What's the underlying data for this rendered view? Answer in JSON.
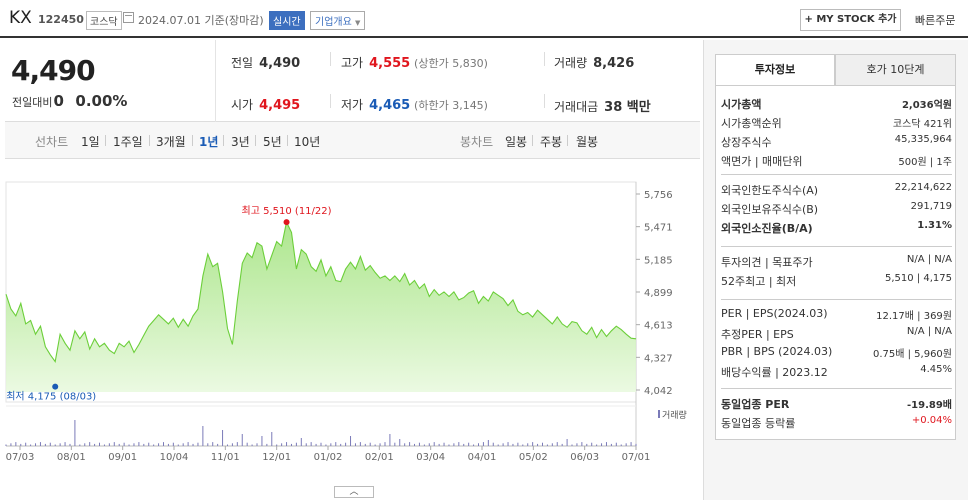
{
  "header": {
    "stock_name": "KX",
    "stock_code": "122450",
    "market": "코스닥",
    "date_text": "2024.07.01 기준(장마감)",
    "live_badge": "실시간",
    "company_info": "기업개요",
    "mystock_button": "+ MY STOCK 추가",
    "quick_order": "빠른주문"
  },
  "quote": {
    "price": "4,490",
    "change_label": "전일대비",
    "change_value": "0",
    "change_pct": "0.00%",
    "prev_label": "전일",
    "prev_value": "4,490",
    "high_label": "고가",
    "high_value": "4,555",
    "upper_limit": "(상한가 5,830)",
    "volume_label": "거래량",
    "volume_value": "8,426",
    "open_label": "시가",
    "open_value": "4,495",
    "low_label": "저가",
    "low_value": "4,465",
    "lower_limit": "(하한가 3,145)",
    "amount_label": "거래대금",
    "amount_value": "38 백만"
  },
  "period_tabs": {
    "line_label": "선차트",
    "line_items": [
      "1일",
      "1주일",
      "3개월",
      "1년",
      "3년",
      "5년",
      "10년"
    ],
    "active": "1년",
    "candle_label": "봉차트",
    "candle_items": [
      "일봉",
      "주봉",
      "월봉"
    ]
  },
  "chart_data": {
    "type": "area",
    "x_tick_labels": [
      "07/03",
      "08/01",
      "09/01",
      "10/04",
      "11/01",
      "12/01",
      "01/02",
      "02/01",
      "03/04",
      "04/01",
      "05/02",
      "06/03",
      "07/01"
    ],
    "y_tick_labels": [
      "5,756",
      "5,471",
      "5,185",
      "4,899",
      "4,613",
      "4,327",
      "4,042"
    ],
    "ylim": [
      4042,
      5756
    ],
    "high_annotation": "최고 5,510 (11/22)",
    "low_annotation": "최저 4,175 (08/03)",
    "volume_label": "거래량",
    "series": [
      {
        "values": [
          4880,
          4750,
          4690,
          4800,
          4620,
          4650,
          4530,
          4600,
          4420,
          4350,
          4290,
          4530,
          4450,
          4390,
          4560,
          4490,
          4550,
          4400,
          4490,
          4420,
          4450,
          4390,
          4360,
          4450,
          4420,
          4470,
          4370,
          4440,
          4520,
          4600,
          4650,
          4700,
          4660,
          4620,
          4670,
          4590,
          4660,
          4600,
          4690,
          4750,
          5040,
          5230,
          5120,
          5150,
          4900,
          4580,
          4440,
          4820,
          5150,
          5240,
          5200,
          5330,
          5300,
          5100,
          5220,
          5340,
          5300,
          5510,
          5420,
          5100,
          5270,
          5230,
          5120,
          5080,
          5180,
          5040,
          5120,
          5000,
          4990,
          5100,
          5160,
          5100,
          5210,
          5090,
          5130,
          5070,
          5020,
          5040,
          5000,
          5040,
          4990,
          5060,
          4960,
          5000,
          4930,
          4970,
          4860,
          4920,
          4870,
          4900,
          4860,
          4900,
          4830,
          4850,
          4890,
          4910,
          4800,
          4860,
          4820,
          4900,
          4870,
          4840,
          4780,
          4830,
          4730,
          4700,
          4720,
          4680,
          4740,
          4700,
          4660,
          4620,
          4680,
          4620,
          4590,
          4640,
          4630,
          4560,
          4530,
          4590,
          4500,
          4570,
          4510,
          4560,
          4600,
          4570,
          4530,
          4495,
          4490
        ]
      }
    ]
  },
  "right_panel": {
    "tab_active": "투자정보",
    "tab_other": "호가 10단계",
    "rows": [
      {
        "k": "시가총액",
        "v": "2,036억원",
        "bold": true
      },
      {
        "k": "시가총액순위",
        "v": "코스닥 421위"
      },
      {
        "k": "상장주식수",
        "v": "45,335,964"
      },
      {
        "k": "액면가 | 매매단위",
        "v": "500원 | 1주"
      },
      {
        "k": "외국인한도주식수(A)",
        "v": "22,214,622"
      },
      {
        "k": "외국인보유주식수(B)",
        "v": "291,719"
      },
      {
        "k": "외국인소진율(B/A)",
        "v": "1.31%",
        "bold": true
      },
      {
        "k": "투자의견 | 목표주가",
        "v": "N/A | N/A"
      },
      {
        "k": "52주최고 | 최저",
        "v": "5,510 | 4,175"
      },
      {
        "k": "PER | EPS(2024.03)",
        "v": "12.17배 | 369원"
      },
      {
        "k": "추정PER | EPS",
        "v": "N/A | N/A"
      },
      {
        "k": "PBR | BPS (2024.03)",
        "v": "0.75배 | 5,960원"
      },
      {
        "k": "배당수익률 | 2023.12",
        "v": "4.45%"
      },
      {
        "k": "동일업종 PER",
        "v": "-19.89배",
        "bold": true
      },
      {
        "k": "동일업종 등락률",
        "v": "+0.04%",
        "red": true
      }
    ]
  }
}
